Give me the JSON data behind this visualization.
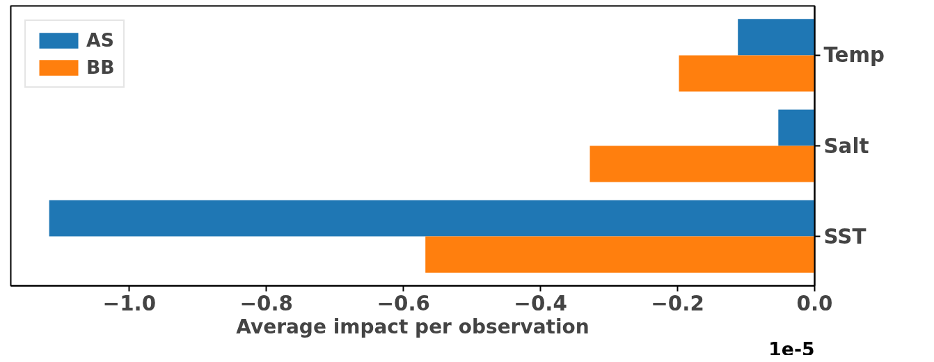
{
  "chart_data": {
    "type": "bar",
    "orientation": "horizontal",
    "xlabel": "Average impact per observation",
    "annotations": [
      "1e-5"
    ],
    "categories": [
      "Temp",
      "Salt",
      "SST"
    ],
    "series": [
      {
        "name": "AS",
        "color": "#1f77b4",
        "values": [
          -0.112,
          -0.053,
          -1.117
        ]
      },
      {
        "name": "BB",
        "color": "#ff7f0e",
        "values": [
          -0.198,
          -0.328,
          -0.568
        ]
      }
    ],
    "xlim": [
      -1.173,
      0.0
    ],
    "xticks": [
      {
        "value": -1.0,
        "label": "−1.0"
      },
      {
        "value": -0.8,
        "label": "−0.8"
      },
      {
        "value": -0.6,
        "label": "−0.6"
      },
      {
        "value": -0.4,
        "label": "−0.4"
      },
      {
        "value": -0.2,
        "label": "−0.2"
      },
      {
        "value": 0.0,
        "label": "0.0"
      }
    ],
    "grid": false,
    "legend": "top left"
  }
}
